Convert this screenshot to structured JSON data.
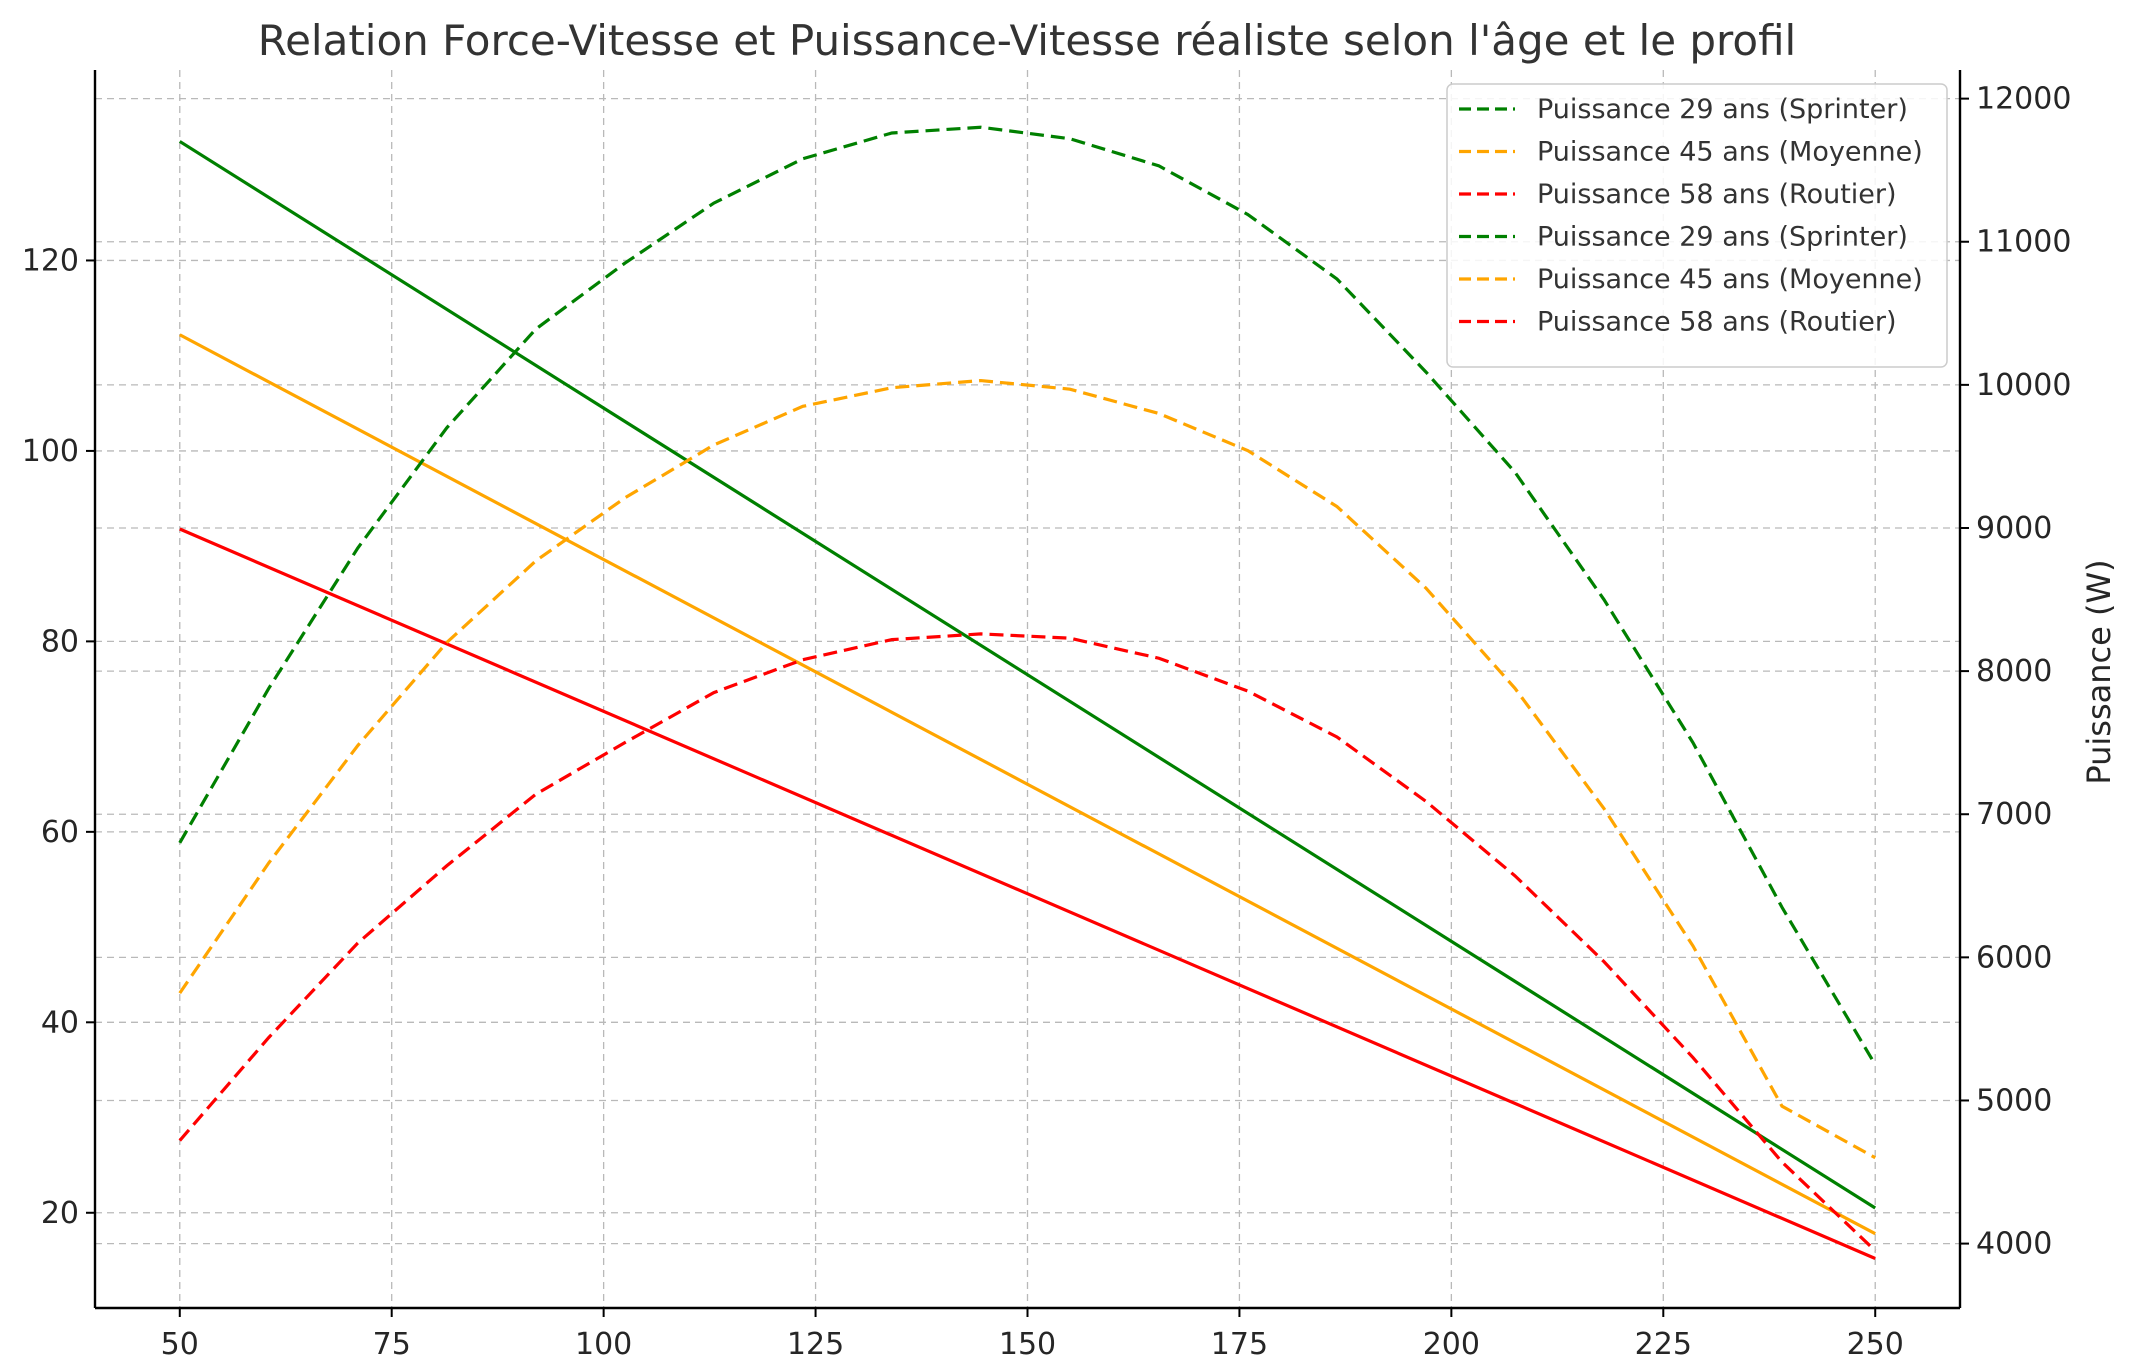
{
  "chart_data": {
    "type": "line",
    "title": "Relation Force-Vitesse et Puissance-Vitesse réaliste selon l'âge et le profil",
    "xlabel": "",
    "ylabel_left": "",
    "ylabel_right": "Puissance (W)",
    "xlim": [
      40,
      260
    ],
    "ylim_left": [
      10,
      140
    ],
    "ylim_right": [
      3550,
      12200
    ],
    "x_ticks": [
      50,
      75,
      100,
      125,
      150,
      175,
      200,
      225,
      250
    ],
    "y_left_ticks": [
      20,
      40,
      60,
      80,
      100,
      120
    ],
    "y_right_ticks": [
      4000,
      5000,
      6000,
      7000,
      8000,
      9000,
      10000,
      11000,
      12000
    ],
    "grid": true,
    "legend_position": "top-right",
    "force_series": [
      {
        "axis": "left",
        "color": "#008000",
        "style": "solid",
        "x": [
          50,
          250
        ],
        "y": [
          132.5,
          20.5
        ]
      },
      {
        "axis": "left",
        "color": "#FFA500",
        "style": "solid",
        "x": [
          50,
          250
        ],
        "y": [
          112.2,
          17.8
        ]
      },
      {
        "axis": "left",
        "color": "#FF0000",
        "style": "solid",
        "x": [
          50,
          250
        ],
        "y": [
          91.8,
          15.2
        ]
      }
    ],
    "power_x": [
      50,
      60.5,
      71,
      81.5,
      92,
      102.5,
      113,
      123.5,
      134,
      144.5,
      155,
      165.5,
      176,
      186.5,
      197,
      207.5,
      218,
      228.5,
      239,
      250
    ],
    "series": [
      {
        "name": "Puissance 29 ans (Sprinter)",
        "axis": "right",
        "color": "#008000",
        "style": "dashed",
        "values": [
          6800,
          7880,
          8860,
          9700,
          10390,
          10850,
          11270,
          11580,
          11760,
          11800,
          11720,
          11530,
          11190,
          10740,
          10090,
          9390,
          8500,
          7500,
          6350,
          5250
        ]
      },
      {
        "name": "Puissance 45 ans (Moyenne)",
        "axis": "right",
        "color": "#FFA500",
        "style": "dashed",
        "values": [
          5750,
          6660,
          7480,
          8200,
          8770,
          9210,
          9580,
          9850,
          9980,
          10030,
          9970,
          9800,
          9540,
          9150,
          8580,
          7880,
          7040,
          6080,
          4960,
          4600
        ]
      },
      {
        "name": "Puissance 58 ans (Routier)",
        "axis": "right",
        "color": "#FF0000",
        "style": "dashed",
        "values": [
          4720,
          5440,
          6100,
          6640,
          7140,
          7500,
          7850,
          8080,
          8220,
          8260,
          8230,
          8090,
          7860,
          7540,
          7090,
          6570,
          5970,
          5300,
          4570,
          3950
        ]
      }
    ],
    "legend_entries": [
      {
        "label": "Puissance 29 ans (Sprinter)",
        "color": "#008000"
      },
      {
        "label": "Puissance 45 ans (Moyenne)",
        "color": "#FFA500"
      },
      {
        "label": "Puissance 58 ans (Routier)",
        "color": "#FF0000"
      },
      {
        "label": "Puissance 29 ans (Sprinter)",
        "color": "#008000"
      },
      {
        "label": "Puissance 45 ans (Moyenne)",
        "color": "#FFA500"
      },
      {
        "label": "Puissance 58 ans (Routier)",
        "color": "#FF0000"
      }
    ]
  }
}
